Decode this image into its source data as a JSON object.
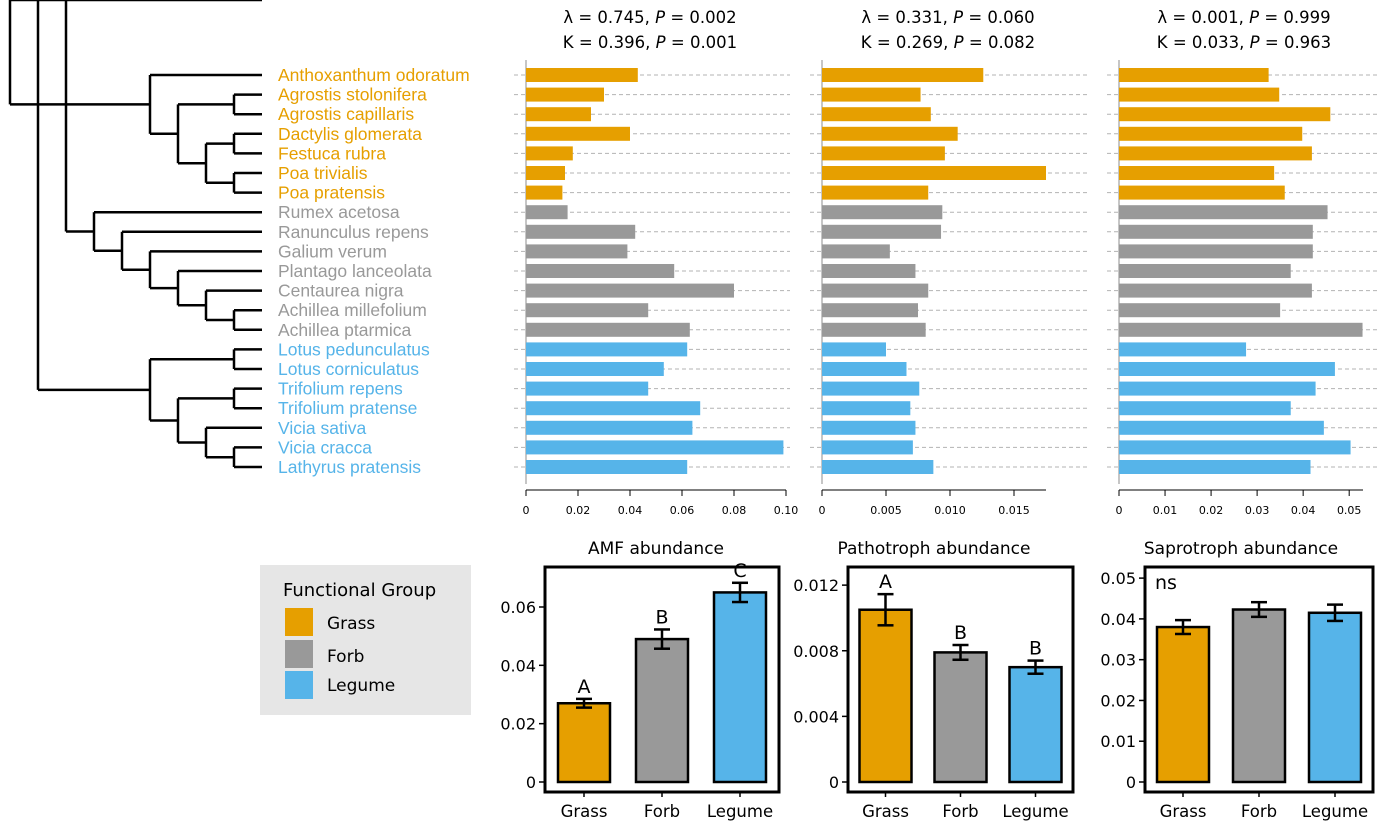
{
  "colors": {
    "Grass": "#E69F00",
    "Forb": "#999999",
    "Legume": "#56B4E9"
  },
  "species": [
    {
      "name": "Anthoxanthum odoratum",
      "group": "Grass"
    },
    {
      "name": "Agrostis stolonifera",
      "group": "Grass"
    },
    {
      "name": "Agrostis capillaris",
      "group": "Grass"
    },
    {
      "name": "Dactylis glomerata",
      "group": "Grass"
    },
    {
      "name": "Festuca rubra",
      "group": "Grass"
    },
    {
      "name": "Poa trivialis",
      "group": "Grass"
    },
    {
      "name": "Poa pratensis",
      "group": "Grass"
    },
    {
      "name": "Rumex acetosa",
      "group": "Forb"
    },
    {
      "name": "Ranunculus repens",
      "group": "Forb"
    },
    {
      "name": "Galium verum",
      "group": "Forb"
    },
    {
      "name": "Plantago lanceolata",
      "group": "Forb"
    },
    {
      "name": "Centaurea nigra",
      "group": "Forb"
    },
    {
      "name": "Achillea millefolium",
      "group": "Forb"
    },
    {
      "name": "Achillea ptarmica",
      "group": "Forb"
    },
    {
      "name": "Lotus pedunculatus",
      "group": "Legume"
    },
    {
      "name": "Lotus corniculatus",
      "group": "Legume"
    },
    {
      "name": "Trifolium repens",
      "group": "Legume"
    },
    {
      "name": "Trifolium pratense",
      "group": "Legume"
    },
    {
      "name": "Vicia sativa",
      "group": "Legume"
    },
    {
      "name": "Vicia cracca",
      "group": "Legume"
    },
    {
      "name": "Lathyrus pratensis",
      "group": "Legume"
    }
  ],
  "tree": [
    [
      "Anthoxanthum odoratum",
      [
        [
          "Agrostis stolonifera",
          "Agrostis capillaris"
        ],
        [
          [
            "Dactylis glomerata",
            "Festuca rubra"
          ],
          [
            "Poa trivialis",
            "Poa pratensis"
          ]
        ]
      ]
    ],
    [
      [
        [
          "Rumex acetosa",
          [
            "Ranunculus repens",
            [
              "Galium verum",
              [
                "Plantago lanceolata",
                [
                  "Centaurea nigra",
                  [
                    "Achillea millefolium",
                    "Achillea ptarmica"
                  ]
                ]
              ]
            ]
          ]
        ]
      ],
      [
        [
          "Lotus pedunculatus",
          "Lotus corniculatus"
        ],
        [
          [
            "Trifolium repens",
            "Trifolium pratense"
          ],
          [
            "Vicia sativa",
            [
              "Vicia cracca",
              "Lathyrus pratensis"
            ]
          ]
        ]
      ]
    ]
  ],
  "chart_data": [
    {
      "type": "bar",
      "orientation": "horizontal",
      "stats": [
        "λ = 0.745, P = 0.002",
        "K = 0.396, P = 0.001"
      ],
      "stats_parts": [
        [
          "λ = 0.745, ",
          "P",
          " = 0.002"
        ],
        [
          "K = 0.396, ",
          "P",
          " = 0.001"
        ]
      ],
      "xlabel": "AMF abundance",
      "xlim": [
        0,
        0.1
      ],
      "xticks": [
        0,
        0.02,
        0.04,
        0.06,
        0.08,
        0.1
      ],
      "xtick_labels": [
        "0",
        "0.02",
        "0.04",
        "0.06",
        "0.08",
        "0.10"
      ],
      "values": [
        0.043,
        0.03,
        0.025,
        0.04,
        0.018,
        0.015,
        0.014,
        0.016,
        0.042,
        0.039,
        0.057,
        0.08,
        0.047,
        0.063,
        0.062,
        0.053,
        0.047,
        0.067,
        0.064,
        0.099,
        0.062
      ]
    },
    {
      "type": "bar",
      "orientation": "horizontal",
      "stats": [
        "λ = 0.331, P = 0.060",
        "K = 0.269, P = 0.082"
      ],
      "stats_parts": [
        [
          "λ = 0.331, ",
          "P",
          " = 0.060"
        ],
        [
          "K = 0.269, ",
          "P",
          " = 0.082"
        ]
      ],
      "xlabel": "Pathotroph abundance",
      "xlim": [
        0,
        0.0175
      ],
      "xticks": [
        0,
        0.005,
        0.01,
        0.015
      ],
      "xtick_labels": [
        "0",
        "0.005",
        "0.010",
        "0.015"
      ],
      "values": [
        0.0126,
        0.0077,
        0.0085,
        0.0106,
        0.0096,
        0.0175,
        0.0083,
        0.0094,
        0.0093,
        0.0053,
        0.0073,
        0.0083,
        0.0075,
        0.0081,
        0.005,
        0.0066,
        0.0076,
        0.0069,
        0.0073,
        0.0071,
        0.0087
      ]
    },
    {
      "type": "bar",
      "orientation": "horizontal",
      "stats": [
        "λ = 0.001, P = 0.999",
        "K = 0.033, P = 0.963"
      ],
      "stats_parts": [
        [
          "λ = 0.001, ",
          "P",
          " = 0.999"
        ],
        [
          "K = 0.033, ",
          "P",
          " = 0.963"
        ]
      ],
      "xlabel": "Saprotroph abundance",
      "xlim": [
        0,
        0.053
      ],
      "xticks": [
        0,
        0.01,
        0.02,
        0.03,
        0.04,
        0.05
      ],
      "xtick_labels": [
        "0",
        "0.01",
        "0.02",
        "0.03",
        "0.04",
        "0.05"
      ],
      "values": [
        0.0325,
        0.0348,
        0.0459,
        0.0398,
        0.0419,
        0.0337,
        0.036,
        0.0453,
        0.0421,
        0.0421,
        0.0373,
        0.0419,
        0.035,
        0.0529,
        0.0276,
        0.0469,
        0.0427,
        0.0373,
        0.0445,
        0.0503,
        0.0416
      ]
    },
    {
      "type": "bar",
      "categories": [
        "Grass",
        "Forb",
        "Legume"
      ],
      "values": [
        0.027,
        0.049,
        0.065
      ],
      "errors": [
        0.0015,
        0.0033,
        0.0033
      ],
      "letters": [
        "A",
        "B",
        "C"
      ],
      "ylim": [
        0,
        0.072
      ],
      "yticks": [
        0,
        0.02,
        0.04,
        0.06
      ],
      "ytick_labels": [
        "0",
        "0.02",
        "0.04",
        "0.06"
      ]
    },
    {
      "type": "bar",
      "categories": [
        "Grass",
        "Forb",
        "Legume"
      ],
      "values": [
        0.0105,
        0.0079,
        0.007
      ],
      "errors": [
        0.00095,
        0.00045,
        0.0004
      ],
      "letters": [
        "A",
        "B",
        "B"
      ],
      "ylim": [
        0,
        0.0128
      ],
      "yticks": [
        0,
        0.004,
        0.008,
        0.012
      ],
      "ytick_labels": [
        "0",
        "0.004",
        "0.008",
        "0.012"
      ]
    },
    {
      "type": "bar",
      "categories": [
        "Grass",
        "Forb",
        "Legume"
      ],
      "values": [
        0.038,
        0.0423,
        0.0415
      ],
      "errors": [
        0.0017,
        0.0018,
        0.002
      ],
      "annotation": "ns",
      "ylim": [
        0,
        0.0515
      ],
      "yticks": [
        0,
        0.01,
        0.02,
        0.03,
        0.04,
        0.05
      ],
      "ytick_labels": [
        "0",
        "0.01",
        "0.02",
        "0.03",
        "0.04",
        "0.05"
      ]
    }
  ],
  "legend": {
    "title": "Functional Group",
    "items": [
      {
        "label": "Grass",
        "color": "#E69F00"
      },
      {
        "label": "Forb",
        "color": "#999999"
      },
      {
        "label": "Legume",
        "color": "#56B4E9"
      }
    ]
  }
}
